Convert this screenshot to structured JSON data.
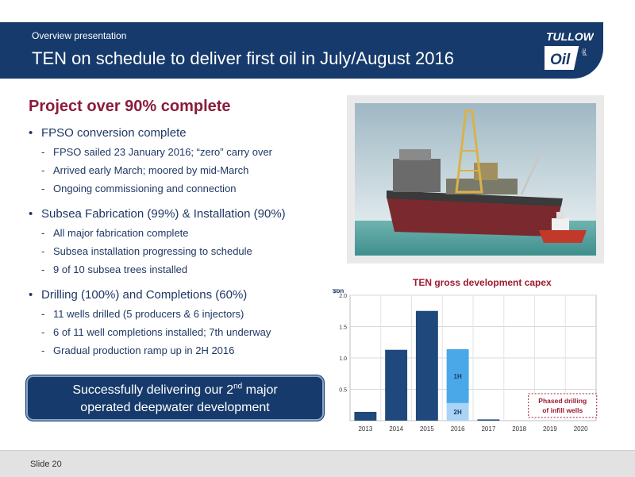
{
  "header": {
    "subtitle": "Overview presentation",
    "title": "TEN on schedule to deliver first oil in July/August 2016",
    "logo_text": "TULLOW",
    "logo_mark": "Oil",
    "logo_plc": "plc"
  },
  "section_title": "Project over 90% complete",
  "bullets": [
    {
      "text": "FPSO conversion complete",
      "sub": [
        "FPSO sailed 23 January 2016; “zero” carry over",
        "Arrived early March; moored by mid-March",
        "Ongoing commissioning and connection"
      ]
    },
    {
      "text": "Subsea Fabrication (99%) & Installation (90%)",
      "sub": [
        "All major fabrication complete",
        "Subsea installation progressing to schedule",
        "9 of 10 subsea trees installed"
      ]
    },
    {
      "text": "Drilling (100%) and Completions (60%)",
      "sub": [
        "11 wells drilled (5 producers & 6 injectors)",
        "6 of 11 well completions installed; 7th underway",
        "Gradual production ramp up in 2H 2016"
      ]
    }
  ],
  "callout": {
    "prefix": "Successfully delivering our 2",
    "sup": "nd",
    "suffix": " major",
    "line2": "operated deepwater development"
  },
  "photo_alt": "FPSO vessel at sea with tug boat",
  "chart_data": {
    "type": "bar",
    "title": "TEN gross development capex",
    "ylabel": "$bn",
    "ylim": [
      0,
      2.0
    ],
    "yticks": [
      "0.5",
      "1.0",
      "1.5",
      "2.0"
    ],
    "categories": [
      "2013",
      "2014",
      "2015",
      "2016",
      "2017",
      "2018",
      "2019",
      "2020"
    ],
    "series": [
      {
        "name": "",
        "values": [
          0.14,
          1.13,
          1.75,
          0.28,
          0.02,
          0,
          0,
          0
        ],
        "color": "#1f497d"
      },
      {
        "name": "",
        "values": [
          0,
          0,
          0,
          0.86,
          0,
          0,
          0,
          0
        ],
        "color": "#4aa8e8"
      }
    ],
    "segment_labels": [
      {
        "category": "2016",
        "text": "2H",
        "series": 0
      },
      {
        "category": "2016",
        "text": "1H",
        "series": 1
      }
    ],
    "annotation": {
      "line1": "Phased drilling",
      "line2": "of infill wells"
    },
    "colors": {
      "bar": "#1f497d",
      "bar_1h": "#4aa8e8",
      "bar_2h_fill": "#a9d4f5",
      "title": "#9c1b30",
      "annotation": "#9c1b30"
    }
  },
  "footer": {
    "slide_label": "Slide 20"
  }
}
